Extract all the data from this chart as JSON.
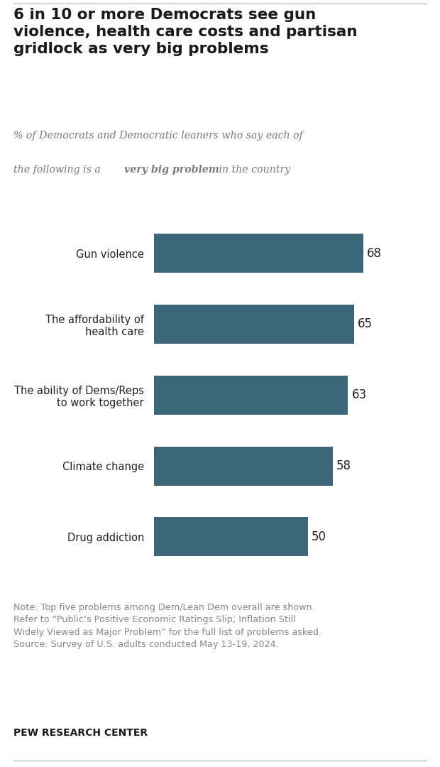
{
  "title": "6 in 10 or more Democrats see gun\nviolence, health care costs and partisan\ngridlock as very big problems",
  "categories": [
    "Gun violence",
    "The affordability of\nhealth care",
    "The ability of Dems/Reps\nto work together",
    "Climate change",
    "Drug addiction"
  ],
  "values": [
    68,
    65,
    63,
    58,
    50
  ],
  "bar_color": "#3d6678",
  "value_color": "#222222",
  "title_color": "#1a1a1a",
  "subtitle_color": "#7a7a7a",
  "note_text": "Note: Top five problems among Dem/Lean Dem overall are shown.\nRefer to “Public’s Positive Economic Ratings Slip; Inflation Still\nWidely Viewed as Major Problem” for the full list of problems asked.\nSource: Survey of U.S. adults conducted May 13-19, 2024.",
  "footer_text": "PEW RESEARCH CENTER",
  "note_color": "#888888",
  "footer_color": "#1a1a1a",
  "xlim": [
    0,
    80
  ],
  "background_color": "#ffffff",
  "line_color": "#aaaaaa"
}
